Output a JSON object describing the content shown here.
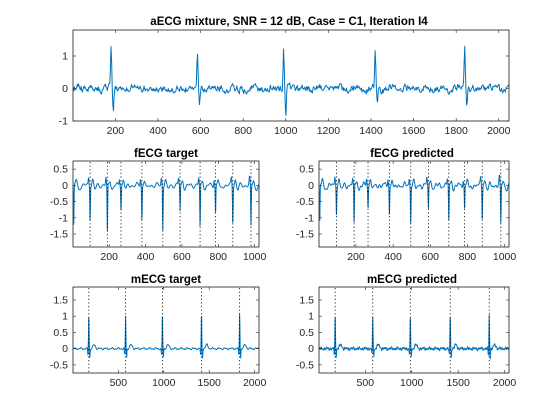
{
  "colors": {
    "signal": "#0072BD",
    "axes": "#262626",
    "peak_marker": "#000000"
  },
  "chart_data": [
    {
      "id": "aecg",
      "type": "line",
      "title": "aECG mixture, SNR = 12 dB, Case = C1, Iteration I4",
      "xlim": [
        1,
        2048
      ],
      "ylim": [
        -1,
        1.8
      ],
      "xticks": [
        200,
        400,
        600,
        800,
        1000,
        1200,
        1400,
        1600,
        1800,
        2000
      ],
      "yticks": [
        -1,
        0,
        1
      ],
      "peaks": [
        {
          "x": 180,
          "h": 1.3
        },
        {
          "x": 190,
          "h": -0.65
        },
        {
          "x": 585,
          "h": 1.2
        },
        {
          "x": 595,
          "h": -0.5
        },
        {
          "x": 990,
          "h": 1.2
        },
        {
          "x": 1000,
          "h": -0.95
        },
        {
          "x": 1420,
          "h": 1.25
        },
        {
          "x": 1430,
          "h": -0.6
        },
        {
          "x": 1840,
          "h": 1.3
        },
        {
          "x": 1850,
          "h": -0.6
        }
      ],
      "noise_amplitude": 0.12
    },
    {
      "id": "fecg-target",
      "type": "line",
      "title": "fECG target",
      "xlim": [
        1,
        1024
      ],
      "ylim": [
        -1.9,
        0.75
      ],
      "xticks": [
        200,
        400,
        600,
        800,
        1000
      ],
      "yticks": [
        -1.5,
        -1,
        -0.5,
        0,
        0.5
      ],
      "peaks": [
        {
          "x": 5,
          "h": -1.3
        },
        {
          "x": 95,
          "h": -1.05
        },
        {
          "x": 190,
          "h": -1.55
        },
        {
          "x": 265,
          "h": -0.75
        },
        {
          "x": 380,
          "h": -1.1
        },
        {
          "x": 495,
          "h": -1.35
        },
        {
          "x": 590,
          "h": -0.8
        },
        {
          "x": 700,
          "h": -1.35
        },
        {
          "x": 785,
          "h": -0.9
        },
        {
          "x": 880,
          "h": -1.2
        },
        {
          "x": 980,
          "h": -1.3
        }
      ],
      "markers": [
        95,
        190,
        265,
        380,
        495,
        590,
        700,
        785,
        880,
        980
      ]
    },
    {
      "id": "fecg-predicted",
      "type": "line",
      "title": "fECG predicted",
      "xlim": [
        1,
        1024
      ],
      "ylim": [
        -1.9,
        0.75
      ],
      "xticks": [
        200,
        400,
        600,
        800,
        1000
      ],
      "yticks": [
        -1.5,
        -1,
        -0.5,
        0,
        0.5
      ],
      "peaks": [
        {
          "x": 5,
          "h": -1.2
        },
        {
          "x": 95,
          "h": -0.85
        },
        {
          "x": 190,
          "h": -1.3
        },
        {
          "x": 265,
          "h": -0.65
        },
        {
          "x": 380,
          "h": -0.95
        },
        {
          "x": 495,
          "h": -1.15
        },
        {
          "x": 590,
          "h": -0.7
        },
        {
          "x": 700,
          "h": -1.2
        },
        {
          "x": 785,
          "h": -0.8
        },
        {
          "x": 880,
          "h": -1.05
        },
        {
          "x": 980,
          "h": -1.2
        }
      ],
      "markers": [
        95,
        190,
        265,
        380,
        495,
        590,
        700,
        785,
        880,
        980
      ]
    },
    {
      "id": "mecg-target",
      "type": "line",
      "title": "mECG target",
      "xlim": [
        1,
        2048
      ],
      "ylim": [
        -0.75,
        1.9
      ],
      "xticks": [
        500,
        1000,
        1500,
        2000
      ],
      "yticks": [
        -0.5,
        0,
        0.5,
        1,
        1.5
      ],
      "peaks": [
        {
          "x": 175,
          "h": 1.1
        },
        {
          "x": 580,
          "h": 1.0
        },
        {
          "x": 985,
          "h": 1.1
        },
        {
          "x": 1415,
          "h": 1.1
        },
        {
          "x": 1835,
          "h": 1.1
        }
      ],
      "markers": [
        175,
        580,
        985,
        1415,
        1835
      ]
    },
    {
      "id": "mecg-predicted",
      "type": "line",
      "title": "mECG predicted",
      "xlim": [
        1,
        2048
      ],
      "ylim": [
        -0.75,
        1.9
      ],
      "xticks": [
        500,
        1000,
        1500,
        2000
      ],
      "yticks": [
        -0.5,
        0,
        0.5,
        1,
        1.5
      ],
      "peaks": [
        {
          "x": 175,
          "h": 1.1
        },
        {
          "x": 580,
          "h": 1.0
        },
        {
          "x": 985,
          "h": 1.05
        },
        {
          "x": 1415,
          "h": 1.1
        },
        {
          "x": 1835,
          "h": 1.05
        }
      ],
      "markers": [
        175,
        580,
        985,
        1415,
        1835
      ]
    }
  ]
}
